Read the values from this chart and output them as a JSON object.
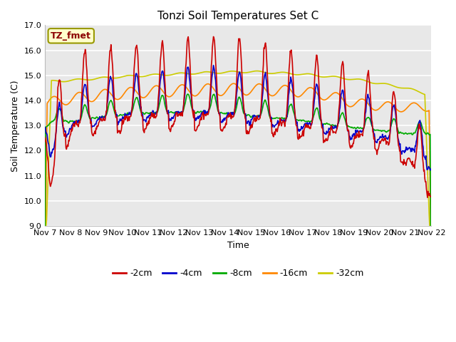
{
  "title": "Tonzi Soil Temperatures Set C",
  "xlabel": "Time",
  "ylabel": "Soil Temperature (C)",
  "ylim": [
    9.0,
    17.0
  ],
  "yticks": [
    9.0,
    10.0,
    11.0,
    12.0,
    13.0,
    14.0,
    15.0,
    16.0,
    17.0
  ],
  "xtick_labels": [
    "Nov 7",
    "Nov 8",
    "Nov 9",
    "Nov 10",
    "Nov 11",
    "Nov 12",
    "Nov 13",
    "Nov 14",
    "Nov 15",
    "Nov 16",
    "Nov 17",
    "Nov 18",
    "Nov 19",
    "Nov 20",
    "Nov 21",
    "Nov 22"
  ],
  "colors": {
    "c2": "#cc0000",
    "c4": "#0000cc",
    "c8": "#00aa00",
    "c16": "#ff8800",
    "c32": "#cccc00"
  },
  "legend_labels": [
    "-2cm",
    "-4cm",
    "-8cm",
    "-16cm",
    "-32cm"
  ],
  "legend_label_box": "TZ_fmet",
  "fig_bg": "#ffffff",
  "ax_bg": "#e8e8e8",
  "grid_color": "#ffffff",
  "line_width": 1.2,
  "title_fontsize": 11,
  "axis_label_fontsize": 9,
  "tick_fontsize": 8,
  "legend_fontsize": 9,
  "n_days": 15,
  "pts_per_day": 48
}
